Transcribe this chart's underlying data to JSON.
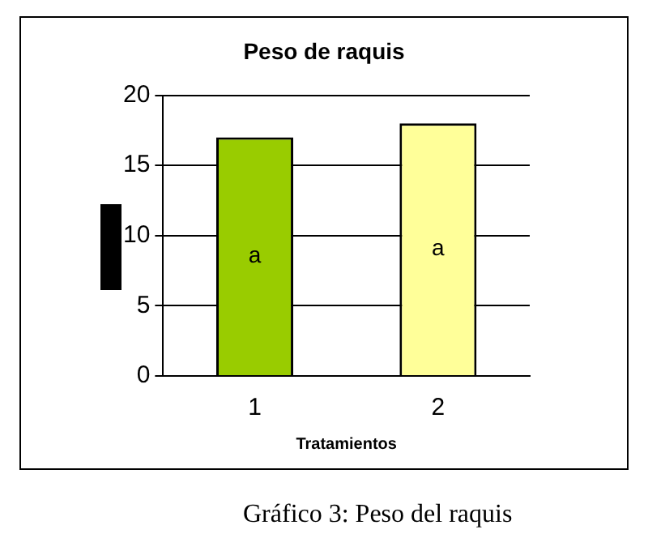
{
  "chart_data": {
    "type": "bar",
    "title": "Peso de raquis",
    "xlabel": "Tratamientos",
    "categories": [
      "1",
      "2"
    ],
    "values": [
      17,
      18
    ],
    "colors": [
      "#99cc00",
      "#ffff99"
    ],
    "ylim": [
      0,
      20
    ],
    "yticks": [
      0,
      5,
      10,
      15,
      20
    ],
    "grid": "y",
    "value_labels": [
      "a",
      "a"
    ],
    "annotations": [
      "Gráfico 3: Peso del raquis"
    ]
  }
}
